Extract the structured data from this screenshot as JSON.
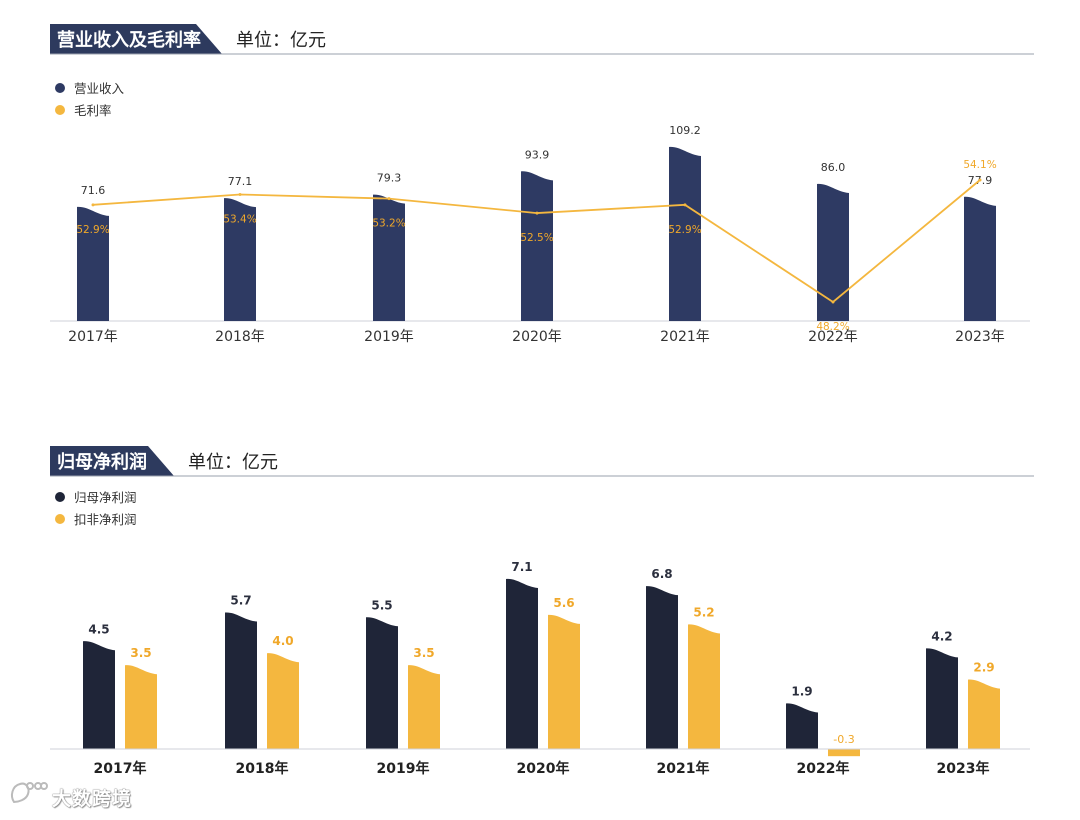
{
  "colors": {
    "navy": "#2e3a63",
    "navy_dark": "#1f2538",
    "yellow": "#f4b73f",
    "yellow_text": "#f0a82a",
    "header_bg": "#2d3a5e",
    "axis": "#cfd2d8",
    "label": "#333333"
  },
  "watermark": {
    "text": "大数跨境"
  },
  "chart_data": [
    {
      "type": "bar+line",
      "title": "营业收入及毛利率",
      "unit": "单位：亿元",
      "categories": [
        "2017年",
        "2018年",
        "2019年",
        "2020年",
        "2021年",
        "2022年",
        "2023年"
      ],
      "series": [
        {
          "name": "营业收入",
          "kind": "bar",
          "color": "#2e3a63",
          "values": [
            71.6,
            77.1,
            79.3,
            93.9,
            109.2,
            86.0,
            77.9
          ],
          "labels": [
            "71.6",
            "77.1",
            "79.3",
            "93.9",
            "109.2",
            "86.0",
            "77.9"
          ]
        },
        {
          "name": "毛利率",
          "kind": "line",
          "color": "#f4b73f",
          "values": [
            52.9,
            53.4,
            53.2,
            52.5,
            52.9,
            48.2,
            54.1
          ],
          "labels": [
            "52.9%",
            "53.4%",
            "53.2%",
            "52.5%",
            "52.9%",
            "48.2%",
            "54.1%"
          ]
        }
      ],
      "ylim_bar": [
        0,
        110
      ],
      "ylim_line": [
        47.5,
        54.5
      ]
    },
    {
      "type": "bar",
      "title": "归母净利润",
      "unit": "单位：亿元",
      "categories": [
        "2017年",
        "2018年",
        "2019年",
        "2020年",
        "2021年",
        "2022年",
        "2023年"
      ],
      "series": [
        {
          "name": "归母净利润",
          "color": "#1f2538",
          "values": [
            4.5,
            5.7,
            5.5,
            7.1,
            6.8,
            1.9,
            4.2
          ],
          "labels": [
            "4.5",
            "5.7",
            "5.5",
            "7.1",
            "6.8",
            "1.9",
            "4.2"
          ]
        },
        {
          "name": "扣非净利润",
          "color": "#f4b73f",
          "values": [
            3.5,
            4.0,
            3.5,
            5.6,
            5.2,
            -0.3,
            2.9
          ],
          "labels": [
            "3.5",
            "4.0",
            "3.5",
            "5.6",
            "5.2",
            "-0.3",
            "2.9"
          ]
        }
      ],
      "ylim": [
        -0.3,
        7.1
      ]
    }
  ]
}
